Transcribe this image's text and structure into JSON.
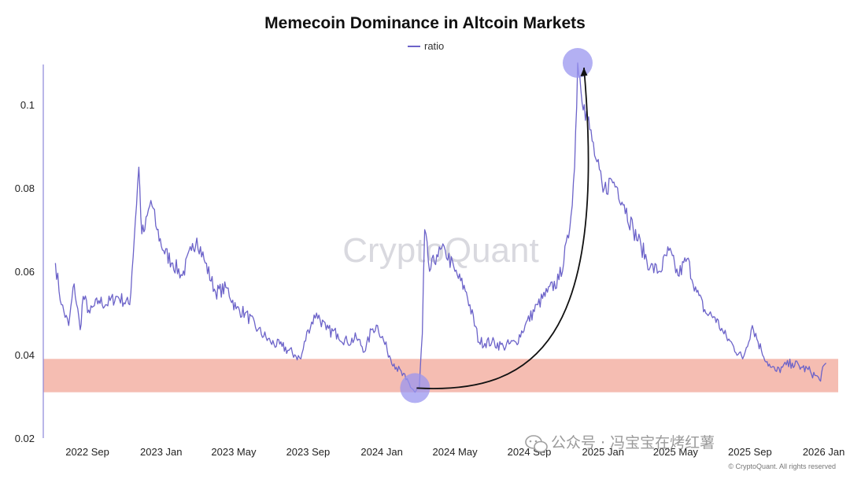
{
  "chart_data": {
    "type": "line",
    "title": "Memecoin Dominance in Altcoin Markets",
    "xlabel": "",
    "ylabel": "",
    "ylim": [
      0.02,
      0.11
    ],
    "yticks": [
      "0.02",
      "0.04",
      "0.06",
      "0.08",
      "0.1"
    ],
    "x_ticks": [
      "2022 Sep",
      "2023 Jan",
      "2023 May",
      "2023 Sep",
      "2024 Jan",
      "2024 May",
      "2024 Sep",
      "2025 Jan",
      "2025 May",
      "2025 Sep",
      "2026 Jan"
    ],
    "legend_position": "top-center",
    "grid": false,
    "line_color": "#6c63c9",
    "series": [
      {
        "name": "ratio",
        "x": [
          "2022-07-10",
          "2022-07-20",
          "2022-08-01",
          "2022-08-10",
          "2022-08-20",
          "2022-08-25",
          "2022-09-05",
          "2022-09-20",
          "2022-10-01",
          "2022-10-20",
          "2022-11-10",
          "2022-11-25",
          "2022-11-30",
          "2022-12-05",
          "2022-12-15",
          "2022-12-25",
          "2023-01-05",
          "2023-01-20",
          "2023-02-05",
          "2023-02-20",
          "2023-03-01",
          "2023-03-15",
          "2023-04-01",
          "2023-04-20",
          "2023-05-05",
          "2023-05-20",
          "2023-06-10",
          "2023-07-01",
          "2023-07-20",
          "2023-08-10",
          "2023-08-20",
          "2023-09-01",
          "2023-09-15",
          "2023-10-01",
          "2023-10-20",
          "2023-11-05",
          "2023-11-20",
          "2023-12-05",
          "2023-12-15",
          "2023-12-25",
          "2024-01-10",
          "2024-01-25",
          "2024-02-10",
          "2024-02-25",
          "2024-03-03",
          "2024-03-08",
          "2024-03-12",
          "2024-03-20",
          "2024-04-01",
          "2024-04-15",
          "2024-05-01",
          "2024-05-20",
          "2024-06-10",
          "2024-07-01",
          "2024-07-20",
          "2024-08-10",
          "2024-08-25",
          "2024-09-15",
          "2024-10-01",
          "2024-10-20",
          "2024-11-05",
          "2024-11-15",
          "2024-11-20",
          "2024-12-01",
          "2024-12-10",
          "2024-12-20",
          "2025-01-01",
          "2025-01-15",
          "2025-01-25",
          "2025-02-05",
          "2025-02-20",
          "2025-03-05",
          "2025-03-20",
          "2025-04-05",
          "2025-04-20",
          "2025-05-05",
          "2025-05-20",
          "2025-06-05",
          "2025-06-20",
          "2025-07-05",
          "2025-07-20",
          "2025-08-05",
          "2025-08-20",
          "2025-09-05",
          "2025-09-20",
          "2025-10-05",
          "2025-10-15",
          "2025-10-25",
          "2025-11-10",
          "2025-11-25",
          "2025-12-10",
          "2025-12-25",
          "2026-01-05"
        ],
        "values": [
          0.062,
          0.052,
          0.047,
          0.057,
          0.046,
          0.054,
          0.05,
          0.053,
          0.052,
          0.054,
          0.052,
          0.085,
          0.069,
          0.07,
          0.077,
          0.07,
          0.065,
          0.062,
          0.059,
          0.065,
          0.068,
          0.062,
          0.055,
          0.056,
          0.051,
          0.05,
          0.046,
          0.043,
          0.042,
          0.04,
          0.039,
          0.046,
          0.05,
          0.046,
          0.045,
          0.043,
          0.044,
          0.041,
          0.046,
          0.047,
          0.041,
          0.037,
          0.034,
          0.031,
          0.032,
          0.045,
          0.07,
          0.06,
          0.064,
          0.065,
          0.06,
          0.055,
          0.043,
          0.043,
          0.042,
          0.043,
          0.047,
          0.052,
          0.055,
          0.058,
          0.068,
          0.085,
          0.11,
          0.1,
          0.094,
          0.087,
          0.079,
          0.082,
          0.08,
          0.076,
          0.07,
          0.066,
          0.061,
          0.06,
          0.065,
          0.059,
          0.063,
          0.055,
          0.05,
          0.049,
          0.045,
          0.042,
          0.039,
          0.047,
          0.041,
          0.037,
          0.036,
          0.037,
          0.038,
          0.037,
          0.036,
          0.034,
          0.038
        ]
      }
    ],
    "band": {
      "low": 0.031,
      "high": 0.039,
      "color": "#f3b1a4"
    },
    "annotations": {
      "circle_start": {
        "x": "2024-02-25",
        "y": 0.032
      },
      "circle_end": {
        "x": "2024-11-20",
        "y": 0.11
      },
      "circle_color": "#9a96ef",
      "arrow_color": "#111111"
    },
    "watermark": "CryptoQuant",
    "credit": "© CryptoQuant. All rights reserved",
    "overlay_text": "公众号 · 冯宝宝在烤红薯"
  }
}
